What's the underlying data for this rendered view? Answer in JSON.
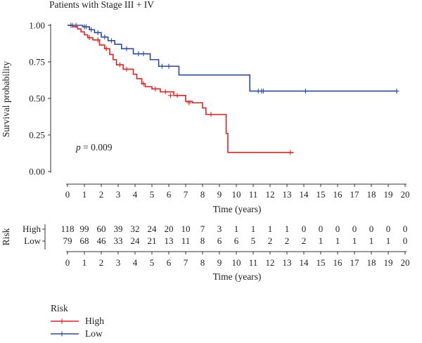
{
  "chart_data": {
    "type": "line",
    "title": "Patients with Stage III + IV",
    "xlabel": "Time (years)",
    "ylabel": "Survival probability",
    "xlim": [
      0,
      20
    ],
    "ylim": [
      0,
      1
    ],
    "x_ticks": [
      0,
      1,
      2,
      3,
      4,
      5,
      6,
      7,
      8,
      9,
      10,
      11,
      12,
      13,
      14,
      15,
      16,
      17,
      18,
      19,
      20
    ],
    "y_ticks": [
      "0.00",
      "0.25",
      "0.50",
      "0.75",
      "1.00"
    ],
    "y_tick_values": [
      0,
      0.25,
      0.5,
      0.75,
      1.0
    ],
    "annotation": {
      "p_symbol": "p",
      "p_text": " = 0.009"
    },
    "colors": {
      "high": "#e8211f",
      "low": "#2b4ba3",
      "axis": "#333333"
    },
    "series": [
      {
        "name": "High",
        "color_key": "high",
        "steps": [
          [
            0,
            1.0
          ],
          [
            0.3,
            0.99
          ],
          [
            0.6,
            0.975
          ],
          [
            0.8,
            0.955
          ],
          [
            1.0,
            0.935
          ],
          [
            1.2,
            0.915
          ],
          [
            1.5,
            0.9
          ],
          [
            1.9,
            0.865
          ],
          [
            2.2,
            0.84
          ],
          [
            2.5,
            0.8
          ],
          [
            2.7,
            0.765
          ],
          [
            2.9,
            0.73
          ],
          [
            3.3,
            0.7
          ],
          [
            3.9,
            0.665
          ],
          [
            4.1,
            0.635
          ],
          [
            4.4,
            0.6
          ],
          [
            4.6,
            0.58
          ],
          [
            5.0,
            0.565
          ],
          [
            5.5,
            0.545
          ],
          [
            6.3,
            0.52
          ],
          [
            7.0,
            0.48
          ],
          [
            7.4,
            0.47
          ],
          [
            8.0,
            0.435
          ],
          [
            8.2,
            0.39
          ],
          [
            9.4,
            0.26
          ],
          [
            9.5,
            0.13
          ],
          [
            13.4,
            0.13
          ]
        ],
        "censors": [
          [
            0.3,
            1.0
          ],
          [
            1.3,
            0.915
          ],
          [
            1.8,
            0.9
          ],
          [
            2.3,
            0.84
          ],
          [
            3.1,
            0.73
          ],
          [
            3.5,
            0.7
          ],
          [
            4.5,
            0.6
          ],
          [
            5.2,
            0.565
          ],
          [
            5.8,
            0.545
          ],
          [
            6.1,
            0.52
          ],
          [
            6.5,
            0.52
          ],
          [
            7.2,
            0.47
          ],
          [
            8.5,
            0.39
          ],
          [
            13.2,
            0.13
          ]
        ]
      },
      {
        "name": "Low",
        "color_key": "low",
        "steps": [
          [
            0,
            1.0
          ],
          [
            0.9,
            0.99
          ],
          [
            1.3,
            0.97
          ],
          [
            1.6,
            0.95
          ],
          [
            2.0,
            0.92
          ],
          [
            2.4,
            0.895
          ],
          [
            2.8,
            0.87
          ],
          [
            3.2,
            0.84
          ],
          [
            3.9,
            0.805
          ],
          [
            4.9,
            0.765
          ],
          [
            5.4,
            0.72
          ],
          [
            6.6,
            0.66
          ],
          [
            10.8,
            0.55
          ],
          [
            19.5,
            0.55
          ]
        ],
        "censors": [
          [
            0.2,
            1.0
          ],
          [
            0.5,
            1.0
          ],
          [
            1.0,
            0.99
          ],
          [
            1.1,
            0.99
          ],
          [
            1.4,
            0.97
          ],
          [
            1.8,
            0.95
          ],
          [
            2.2,
            0.92
          ],
          [
            2.6,
            0.895
          ],
          [
            3.5,
            0.84
          ],
          [
            4.2,
            0.805
          ],
          [
            4.5,
            0.805
          ],
          [
            5.6,
            0.72
          ],
          [
            6.0,
            0.72
          ],
          [
            11.3,
            0.55
          ],
          [
            11.5,
            0.55
          ],
          [
            11.6,
            0.55
          ],
          [
            14.1,
            0.55
          ],
          [
            19.5,
            0.55
          ]
        ]
      }
    ],
    "risk_table": {
      "title": "Risk",
      "xlabel": "Time (years)",
      "rows": [
        {
          "label": "High",
          "counts": [
            "118",
            "99",
            "60",
            "39",
            "32",
            "24",
            "20",
            "10",
            "7",
            "3",
            "1",
            "1",
            "1",
            "1",
            "0",
            "0",
            "0",
            "0",
            "0",
            "0",
            "0"
          ]
        },
        {
          "label": "Low",
          "counts": [
            "79",
            "68",
            "46",
            "33",
            "24",
            "21",
            "13",
            "11",
            "8",
            "6",
            "6",
            "5",
            "2",
            "2",
            "2",
            "1",
            "1",
            "1",
            "1",
            "1",
            "0"
          ]
        }
      ]
    },
    "legend": {
      "title": "Risk",
      "items": [
        {
          "label": "High",
          "color_key": "high"
        },
        {
          "label": "Low",
          "color_key": "low"
        }
      ]
    }
  }
}
